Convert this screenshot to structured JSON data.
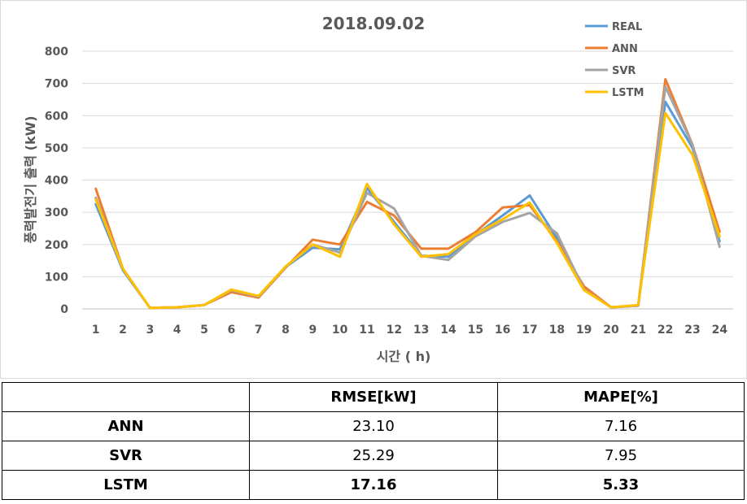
{
  "chart_data": {
    "type": "line",
    "title": "2018.09.02",
    "xlabel": "시간 ( h)",
    "ylabel": "풍력발전기 출력 (kW)",
    "categories": [
      "1",
      "2",
      "3",
      "4",
      "5",
      "6",
      "7",
      "8",
      "9",
      "10",
      "11",
      "12",
      "13",
      "14",
      "15",
      "16",
      "17",
      "18",
      "19",
      "20",
      "21",
      "22",
      "23",
      "24"
    ],
    "ylim": [
      0,
      800
    ],
    "yticks": [
      0,
      100,
      200,
      300,
      400,
      500,
      600,
      700,
      800
    ],
    "grid": true,
    "legend_position": "top-right",
    "series": [
      {
        "name": "REAL",
        "color": "#5B9BD5",
        "values": [
          325,
          120,
          3,
          5,
          12,
          58,
          38,
          130,
          190,
          185,
          375,
          270,
          165,
          162,
          230,
          290,
          352,
          220,
          65,
          5,
          10,
          643,
          500,
          210
        ]
      },
      {
        "name": "ANN",
        "color": "#ED7D31",
        "values": [
          373,
          125,
          3,
          5,
          12,
          52,
          35,
          128,
          215,
          200,
          332,
          290,
          187,
          187,
          238,
          315,
          322,
          210,
          70,
          5,
          10,
          713,
          510,
          240
        ]
      },
      {
        "name": "SVR",
        "color": "#A5A5A5",
        "values": [
          345,
          125,
          3,
          5,
          12,
          58,
          38,
          130,
          200,
          175,
          360,
          312,
          165,
          152,
          225,
          270,
          298,
          235,
          60,
          5,
          10,
          690,
          510,
          193
        ]
      },
      {
        "name": "LSTM",
        "color": "#FFC000",
        "values": [
          340,
          125,
          3,
          5,
          12,
          60,
          40,
          132,
          200,
          162,
          388,
          262,
          162,
          170,
          232,
          278,
          330,
          205,
          58,
          5,
          12,
          608,
          478,
          225
        ]
      }
    ]
  },
  "table": {
    "headers": [
      "",
      "RMSE[kW]",
      "MAPE[%]"
    ],
    "rows": [
      {
        "model": "ANN",
        "rmse": "23.10",
        "mape": "7.16"
      },
      {
        "model": "SVR",
        "rmse": "25.29",
        "mape": "7.95"
      },
      {
        "model": "LSTM",
        "rmse": "17.16",
        "mape": "5.33"
      }
    ]
  }
}
